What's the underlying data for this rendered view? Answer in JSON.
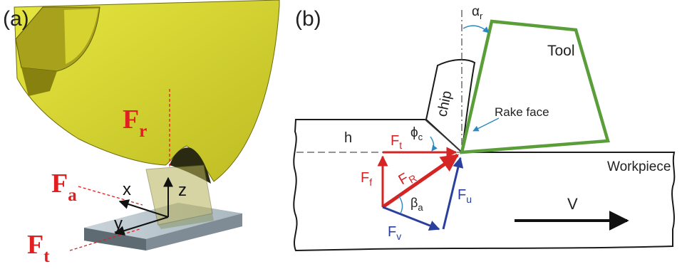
{
  "panel_a": {
    "label": "(a)",
    "force_labels": {
      "fr_main": "F",
      "fr_sub": "r",
      "fa_main": "F",
      "fa_sub": "a",
      "ft_main": "F",
      "ft_sub": "t"
    },
    "axes": {
      "x": "x",
      "y": "y",
      "z": "z"
    },
    "colors": {
      "tool": "#d8d82a",
      "tool_dark": "#8f8a18",
      "force_text": "#e02020",
      "workpiece": "#9aa6ad"
    }
  },
  "panel_b": {
    "label": "(b)",
    "alpha_main": "α",
    "alpha_sub": "r",
    "tool_label": "Tool",
    "chip_label": "chip",
    "rake_face_label": "Rake face",
    "h_label": "h",
    "workpiece_label": "Workpiece",
    "velocity_label": "V",
    "phi_main": "ϕ",
    "phi_sub": "c",
    "ft_main": "F",
    "ft_sub": "t",
    "fr_main": "F",
    "fr_sub": "R",
    "ff_main": "F",
    "ff_sub": "f",
    "beta_main": "β",
    "beta_sub": "a",
    "fu_main": "F",
    "fu_sub": "u",
    "fv_main": "F",
    "fv_sub": "v",
    "colors": {
      "tool_outline": "#5a9e3a",
      "red_force": "#d42424",
      "blue_force": "#2b3f9e",
      "angle_arc": "#2a8ac0"
    }
  }
}
